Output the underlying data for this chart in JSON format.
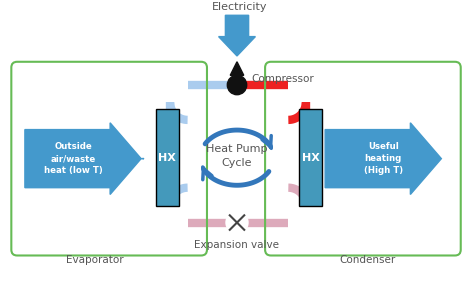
{
  "bg_color": "#ffffff",
  "arrow_blue": "#4499cc",
  "hx_blue": "#4499bb",
  "red_line": "#ee2222",
  "pink_line": "#ddaabb",
  "light_blue_line": "#aaccee",
  "green_box": "#66bb55",
  "cycle_arrow_color": "#3377bb",
  "compressor_black": "#111111",
  "title": "Heat Pump\nCycle",
  "electricity_label": "Electricity",
  "compressor_label": "Compressor",
  "evaporator_label": "Evaporator",
  "condenser_label": "Condenser",
  "expansion_label": "Expansion valve",
  "hx_label": "HX",
  "left_arrow_label": "Outside\nair/waste\nheat (low T)",
  "right_arrow_label": "Useful\nheating\n(High T)",
  "text_color": "#555555"
}
